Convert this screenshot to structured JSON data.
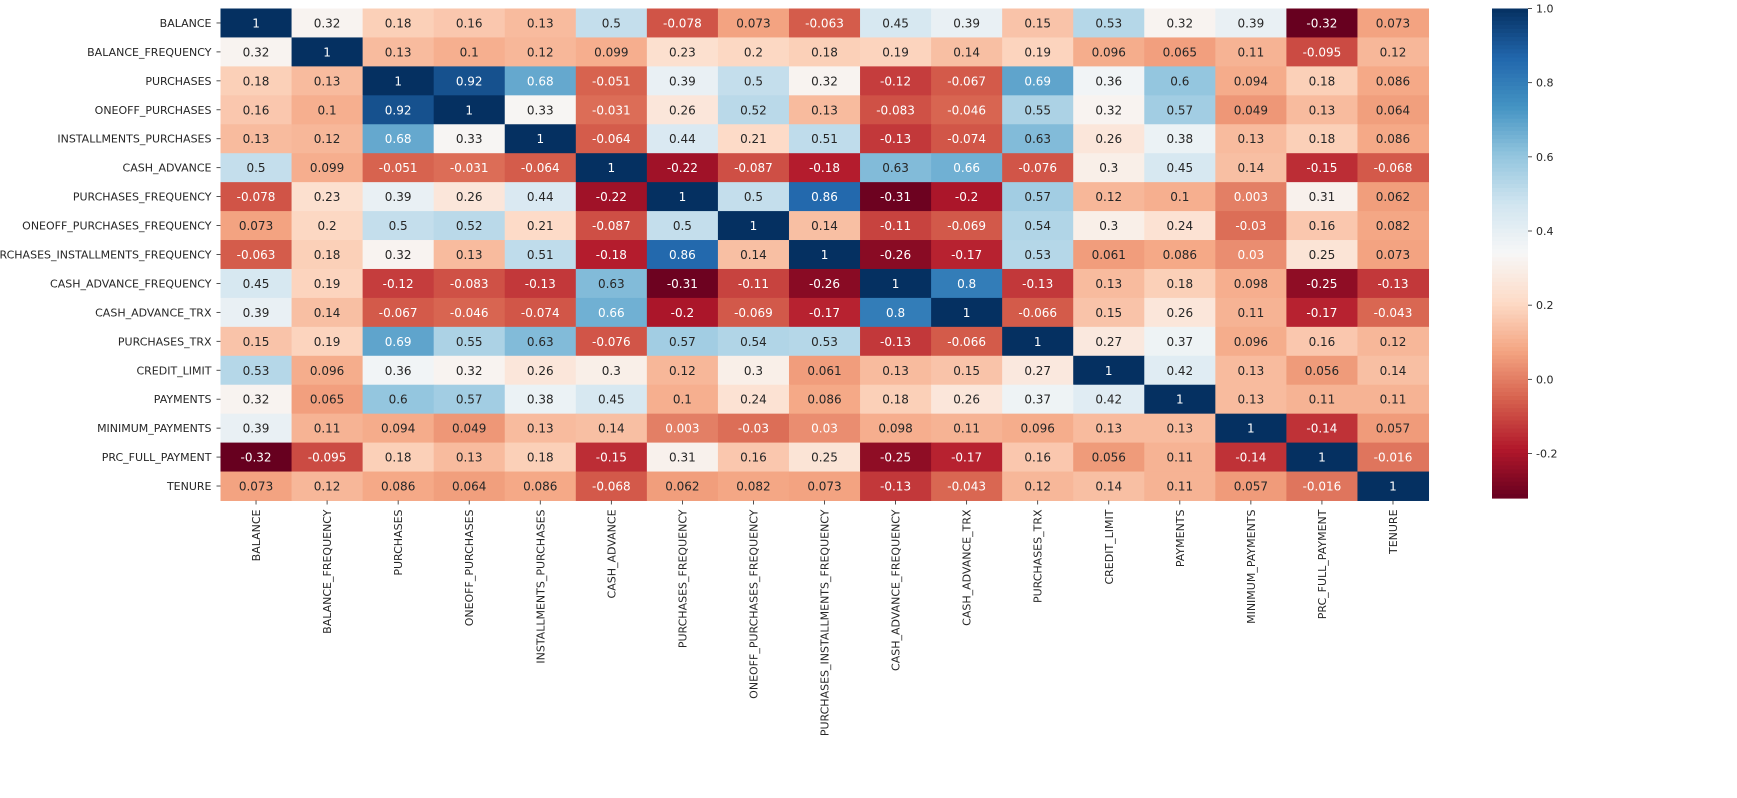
{
  "chart_data": {
    "type": "heatmap",
    "title": "",
    "xlabel": "",
    "ylabel": "",
    "colormap": "RdBu",
    "value_range": [
      -0.32,
      1.0
    ],
    "colorbar_ticks": [
      "-0.2",
      "0.0",
      "0.2",
      "0.4",
      "0.6",
      "0.8",
      "1.0"
    ],
    "colorbar_tick_values": [
      -0.2,
      0.0,
      0.2,
      0.4,
      0.6,
      0.8,
      1.0
    ],
    "annotated": true,
    "labels": [
      "BALANCE",
      "BALANCE_FREQUENCY",
      "PURCHASES",
      "ONEOFF_PURCHASES",
      "INSTALLMENTS_PURCHASES",
      "CASH_ADVANCE",
      "PURCHASES_FREQUENCY",
      "ONEOFF_PURCHASES_FREQUENCY",
      "PURCHASES_INSTALLMENTS_FREQUENCY",
      "CASH_ADVANCE_FREQUENCY",
      "CASH_ADVANCE_TRX",
      "PURCHASES_TRX",
      "CREDIT_LIMIT",
      "PAYMENTS",
      "MINIMUM_PAYMENTS",
      "PRC_FULL_PAYMENT",
      "TENURE"
    ],
    "values": [
      [
        1,
        0.32,
        0.18,
        0.16,
        0.13,
        0.5,
        -0.078,
        0.073,
        -0.063,
        0.45,
        0.39,
        0.15,
        0.53,
        0.32,
        0.39,
        -0.32,
        0.073
      ],
      [
        0.32,
        1,
        0.13,
        0.1,
        0.12,
        0.099,
        0.23,
        0.2,
        0.18,
        0.19,
        0.14,
        0.19,
        0.096,
        0.065,
        0.11,
        -0.095,
        0.12
      ],
      [
        0.18,
        0.13,
        1,
        0.92,
        0.68,
        -0.051,
        0.39,
        0.5,
        0.32,
        -0.12,
        -0.067,
        0.69,
        0.36,
        0.6,
        0.094,
        0.18,
        0.086
      ],
      [
        0.16,
        0.1,
        0.92,
        1,
        0.33,
        -0.031,
        0.26,
        0.52,
        0.13,
        -0.083,
        -0.046,
        0.55,
        0.32,
        0.57,
        0.049,
        0.13,
        0.064
      ],
      [
        0.13,
        0.12,
        0.68,
        0.33,
        1,
        -0.064,
        0.44,
        0.21,
        0.51,
        -0.13,
        -0.074,
        0.63,
        0.26,
        0.38,
        0.13,
        0.18,
        0.086
      ],
      [
        0.5,
        0.099,
        -0.051,
        -0.031,
        -0.064,
        1,
        -0.22,
        -0.087,
        -0.18,
        0.63,
        0.66,
        -0.076,
        0.3,
        0.45,
        0.14,
        -0.15,
        -0.068
      ],
      [
        -0.078,
        0.23,
        0.39,
        0.26,
        0.44,
        -0.22,
        1,
        0.5,
        0.86,
        -0.31,
        -0.2,
        0.57,
        0.12,
        0.1,
        0.003,
        0.31,
        0.062
      ],
      [
        0.073,
        0.2,
        0.5,
        0.52,
        0.21,
        -0.087,
        0.5,
        1,
        0.14,
        -0.11,
        -0.069,
        0.54,
        0.3,
        0.24,
        -0.03,
        0.16,
        0.082
      ],
      [
        -0.063,
        0.18,
        0.32,
        0.13,
        0.51,
        -0.18,
        0.86,
        0.14,
        1,
        -0.26,
        -0.17,
        0.53,
        0.061,
        0.086,
        0.03,
        0.25,
        0.073
      ],
      [
        0.45,
        0.19,
        -0.12,
        -0.083,
        -0.13,
        0.63,
        -0.31,
        -0.11,
        -0.26,
        1,
        0.8,
        -0.13,
        0.13,
        0.18,
        0.098,
        -0.25,
        -0.13
      ],
      [
        0.39,
        0.14,
        -0.067,
        -0.046,
        -0.074,
        0.66,
        -0.2,
        -0.069,
        -0.17,
        0.8,
        1,
        -0.066,
        0.15,
        0.26,
        0.11,
        -0.17,
        -0.043
      ],
      [
        0.15,
        0.19,
        0.69,
        0.55,
        0.63,
        -0.076,
        0.57,
        0.54,
        0.53,
        -0.13,
        -0.066,
        1,
        0.27,
        0.37,
        0.096,
        0.16,
        0.12
      ],
      [
        0.53,
        0.096,
        0.36,
        0.32,
        0.26,
        0.3,
        0.12,
        0.3,
        0.061,
        0.13,
        0.15,
        0.27,
        1,
        0.42,
        0.13,
        0.056,
        0.14
      ],
      [
        0.32,
        0.065,
        0.6,
        0.57,
        0.38,
        0.45,
        0.1,
        0.24,
        0.086,
        0.18,
        0.26,
        0.37,
        0.42,
        1,
        0.13,
        0.11,
        0.11
      ],
      [
        0.39,
        0.11,
        0.094,
        0.049,
        0.13,
        0.14,
        0.003,
        -0.03,
        0.03,
        0.098,
        0.11,
        0.096,
        0.13,
        0.13,
        1,
        -0.14,
        0.057
      ],
      [
        -0.32,
        -0.095,
        0.18,
        0.13,
        0.18,
        -0.15,
        0.31,
        0.16,
        0.25,
        -0.25,
        -0.17,
        0.16,
        0.056,
        0.11,
        -0.14,
        1,
        -0.016
      ],
      [
        0.073,
        0.12,
        0.086,
        0.064,
        0.086,
        -0.068,
        0.062,
        0.082,
        0.073,
        -0.13,
        -0.043,
        0.12,
        0.14,
        0.11,
        0.057,
        -0.016,
        1
      ]
    ]
  }
}
